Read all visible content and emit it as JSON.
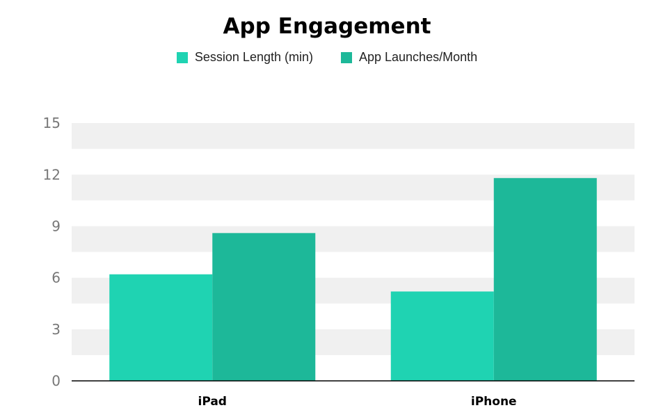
{
  "chart_data": {
    "type": "bar",
    "title": "App Engagement",
    "categories": [
      "iPad",
      "iPhone"
    ],
    "series": [
      {
        "name": "Session Length (min)",
        "values": [
          6.2,
          5.2
        ],
        "color": "#1fd3b2"
      },
      {
        "name": "App Launches/Month",
        "values": [
          8.6,
          11.8
        ],
        "color": "#1db899"
      }
    ],
    "ylim": [
      0,
      16.5
    ],
    "yticks": [
      0,
      3,
      6,
      9,
      12,
      15
    ],
    "xlabel": "",
    "ylabel": "",
    "grid": "alternating horizontal bands",
    "legend": "top-center",
    "colors": {
      "band": "#f0f0f0",
      "axis": "#000000",
      "tick_text": "#777777"
    }
  }
}
